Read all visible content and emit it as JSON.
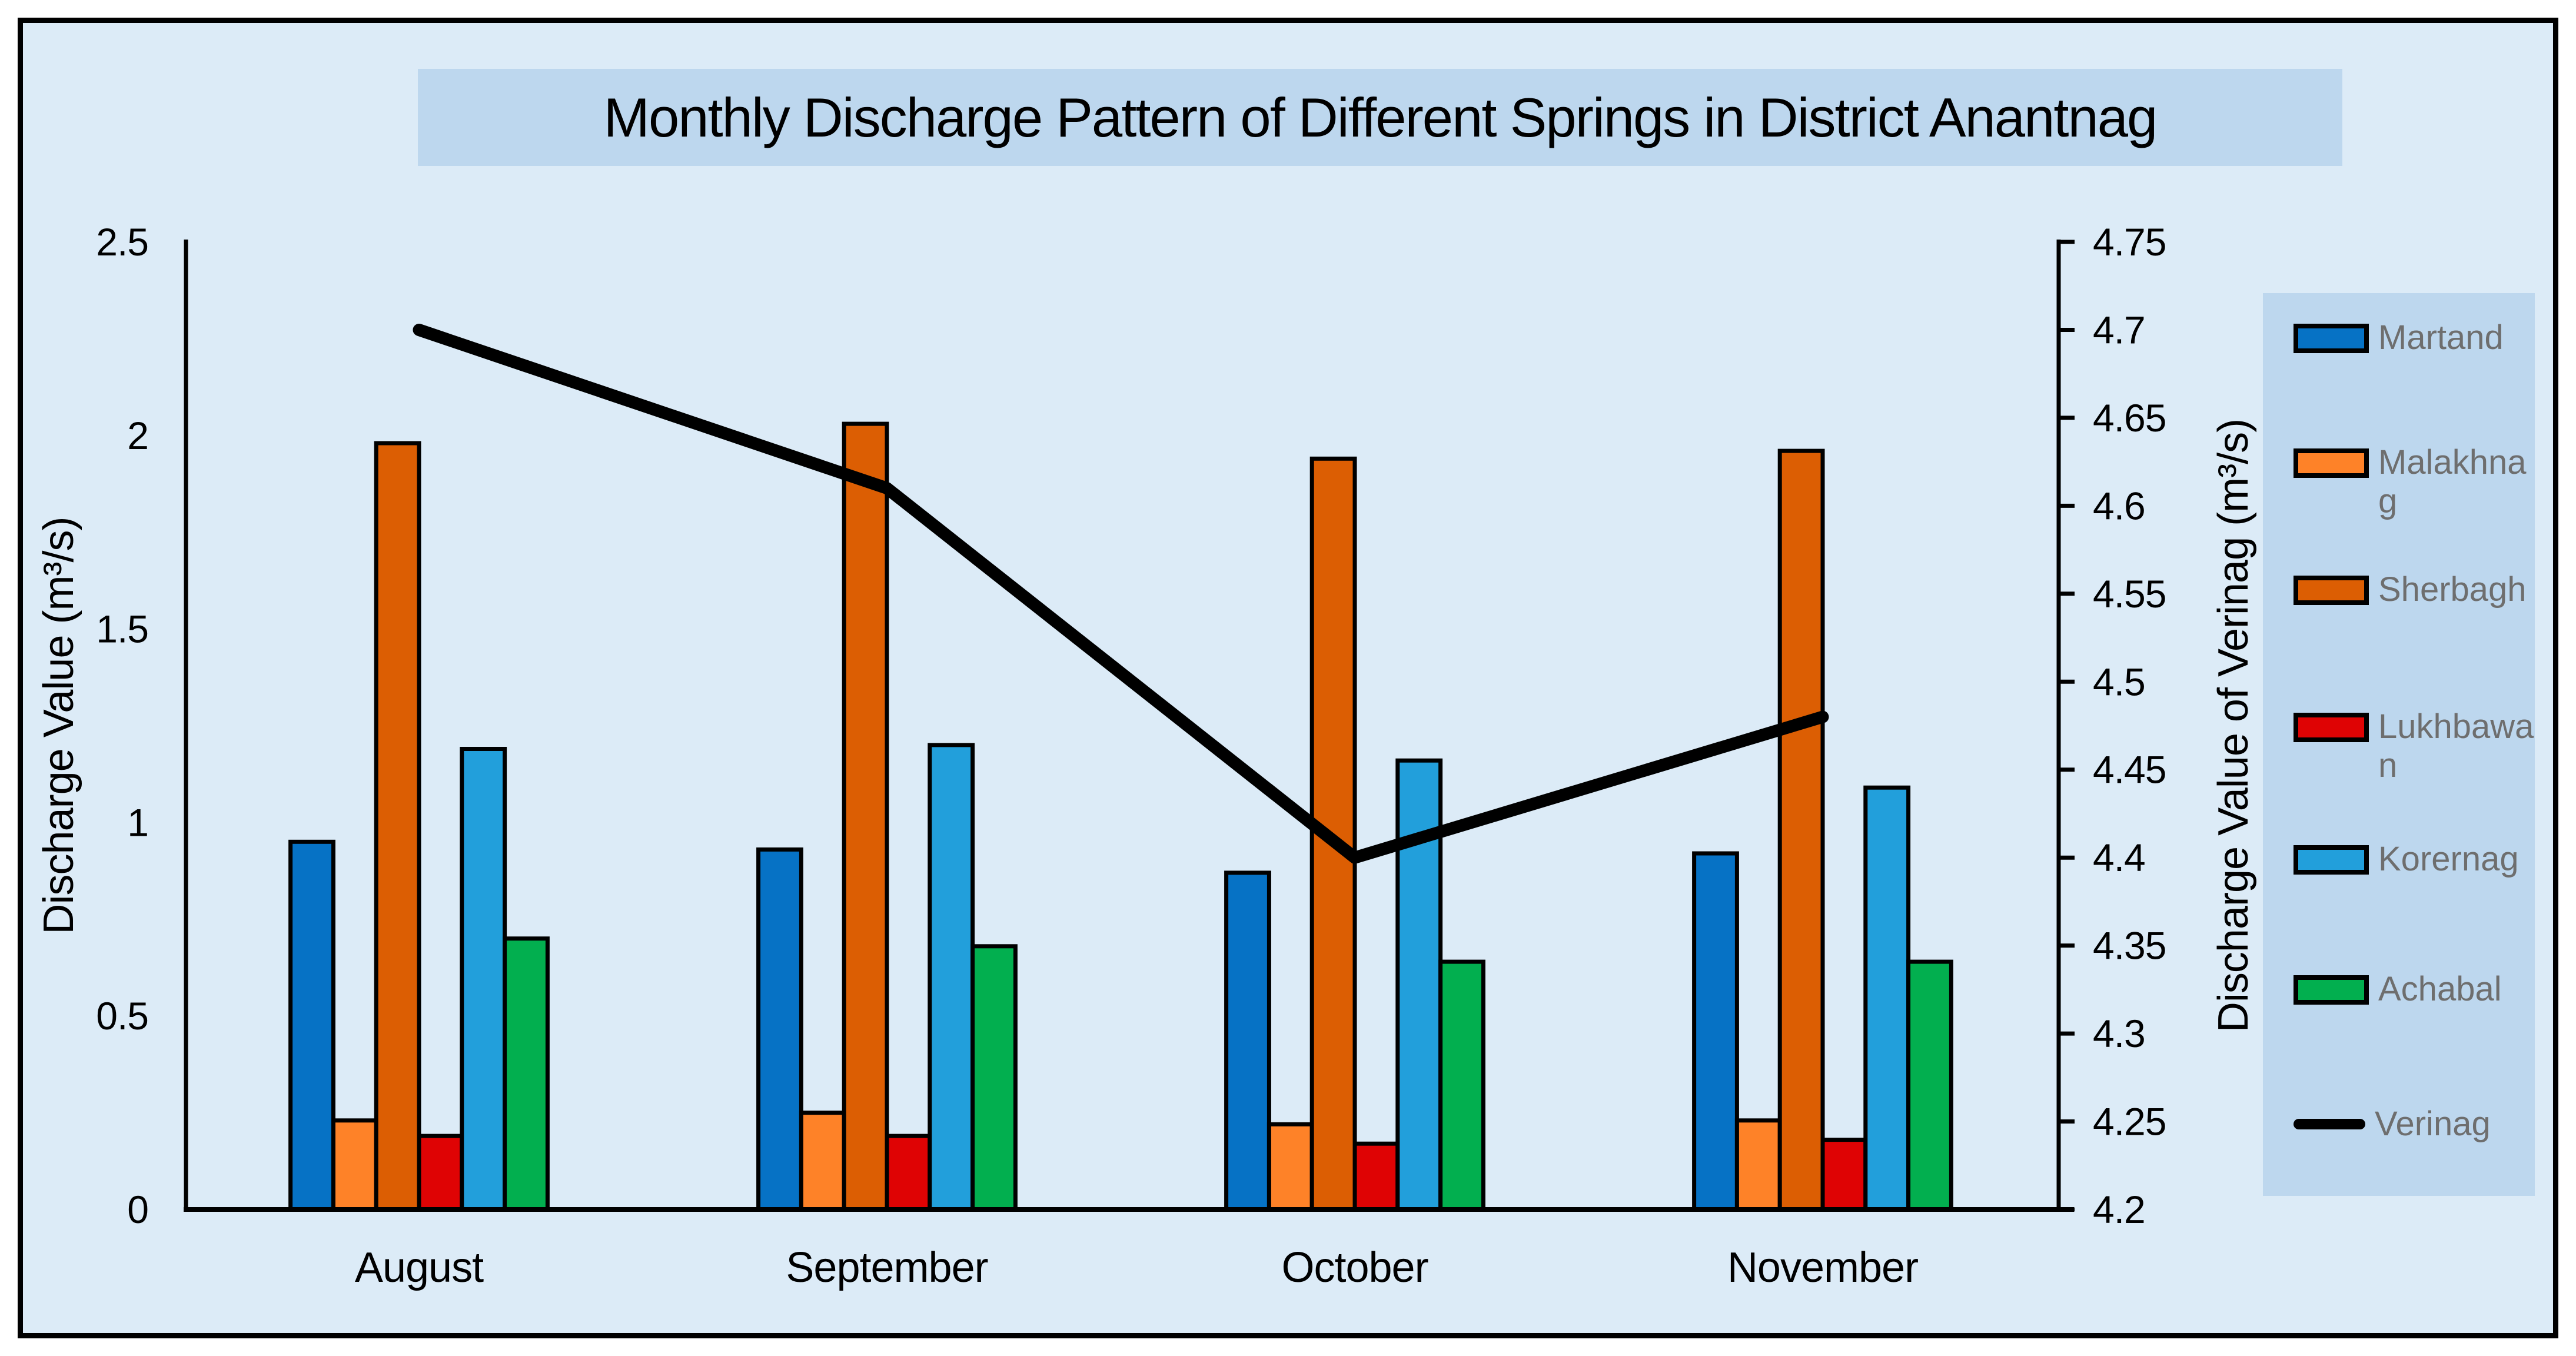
{
  "title": "Monthly Discharge Pattern of Different Springs in District Anantnag",
  "axes": {
    "left": {
      "label": "Discharge Value (m³/s)",
      "ticks": [
        "0",
        "0.5",
        "1",
        "1.5",
        "2",
        "2.5"
      ]
    },
    "right": {
      "label": "Discharge Value of Verinag (m³/s)",
      "ticks": [
        "4.2",
        "4.25",
        "4.3",
        "4.35",
        "4.4",
        "4.45",
        "4.5",
        "4.55",
        "4.6",
        "4.65",
        "4.7",
        "4.75"
      ]
    },
    "x": {
      "categories": [
        "August",
        "September",
        "October",
        "November"
      ]
    }
  },
  "legend": {
    "entries": [
      {
        "label": "Martand",
        "color": "#0672C5",
        "type": "bar"
      },
      {
        "label": "Malakhnag",
        "color": "#FE8228",
        "type": "bar"
      },
      {
        "label": "Sherbagh",
        "color": "#DC5E03",
        "type": "bar"
      },
      {
        "label": "Lukhbawan",
        "color": "#DF0304",
        "type": "bar"
      },
      {
        "label": "Korernag",
        "color": "#229FDB",
        "type": "bar"
      },
      {
        "label": "Achabal",
        "color": "#02AF4F",
        "type": "bar"
      },
      {
        "label": "Verinag",
        "color": "#000000",
        "type": "line"
      }
    ]
  },
  "chart_data": {
    "type": "bar+line",
    "title": "Monthly Discharge Pattern of Different Springs in District Anantnag",
    "categories": [
      "August",
      "September",
      "October",
      "November"
    ],
    "series": [
      {
        "name": "Martand",
        "type": "bar",
        "axis": "left",
        "color": "#0672C5",
        "values": [
          0.95,
          0.93,
          0.87,
          0.92
        ]
      },
      {
        "name": "Malakhnag",
        "type": "bar",
        "axis": "left",
        "color": "#FE8228",
        "values": [
          0.23,
          0.25,
          0.22,
          0.23
        ]
      },
      {
        "name": "Sherbagh",
        "type": "bar",
        "axis": "left",
        "color": "#DC5E03",
        "values": [
          1.98,
          2.03,
          1.94,
          1.96
        ]
      },
      {
        "name": "Lukhbawan",
        "type": "bar",
        "axis": "left",
        "color": "#DF0304",
        "values": [
          0.19,
          0.19,
          0.17,
          0.18
        ]
      },
      {
        "name": "Korernag",
        "type": "bar",
        "axis": "left",
        "color": "#229FDB",
        "values": [
          1.19,
          1.2,
          1.16,
          1.09
        ]
      },
      {
        "name": "Achabal",
        "type": "bar",
        "axis": "left",
        "color": "#02AF4F",
        "values": [
          0.7,
          0.68,
          0.64,
          0.64
        ]
      },
      {
        "name": "Verinag",
        "type": "line",
        "axis": "right",
        "color": "#000000",
        "values": [
          4.7,
          4.61,
          4.4,
          4.48
        ]
      }
    ],
    "left_ylabel": "Discharge Value (m³/s)",
    "right_ylabel": "Discharge Value of Verinag (m³/s)",
    "xlabel": "",
    "left_ylim": [
      0,
      2.5
    ],
    "right_ylim": [
      4.2,
      4.75
    ],
    "left_tick_step": 0.5,
    "right_tick_step": 0.05,
    "grid": false,
    "legend_position": "right"
  },
  "colors": {
    "page_bg": "#FFFFFF",
    "chart_bg": "#DCEBF7",
    "panel_bg": "#BDD7EE",
    "legend_text": "#6E6E6E",
    "axis": "#000000"
  }
}
